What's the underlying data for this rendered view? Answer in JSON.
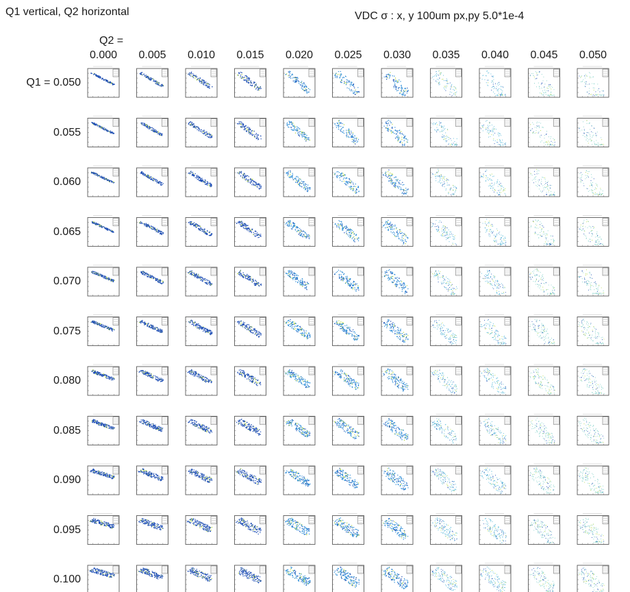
{
  "header": {
    "title_left": "Q1 vertical,  Q2 horizontal",
    "title_right": "VDC σ  : x, y 100um     px,py 5.0*1e-4",
    "q2_prefix": "Q2 =",
    "q1_prefix": "Q1 = "
  },
  "chart_data": {
    "type": "scatter",
    "layout": "small-multiples-grid",
    "row_axis": {
      "name": "Q1",
      "values": [
        "0.050",
        "0.055",
        "0.060",
        "0.065",
        "0.070",
        "0.075",
        "0.080",
        "0.085",
        "0.090",
        "0.095",
        "0.100"
      ]
    },
    "col_axis": {
      "name": "Q2",
      "values": [
        "0.000",
        "0.005",
        "0.010",
        "0.015",
        "0.020",
        "0.025",
        "0.030",
        "0.035",
        "0.040",
        "0.045",
        "0.050"
      ]
    },
    "colors": {
      "dense": "#1f4fb5",
      "mid": "#2a8bd6",
      "light": "#55b8d8",
      "pale": "#7fd0c8",
      "accent": "#b5d94a"
    }
  }
}
